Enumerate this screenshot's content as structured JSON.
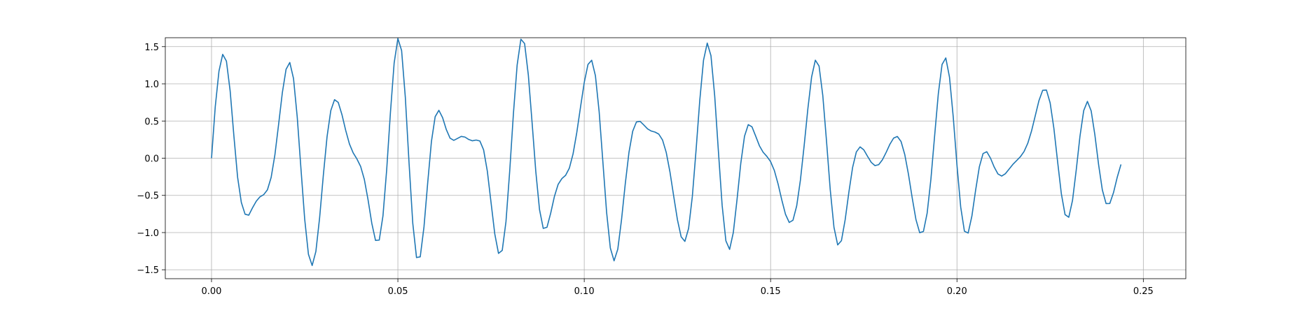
{
  "chart_data": {
    "type": "line",
    "title": "",
    "xlabel": "",
    "ylabel": "",
    "xlim": [
      -0.0124,
      0.2614
    ],
    "ylim": [
      -1.62,
      1.62
    ],
    "grid": true,
    "xticks": [
      0.0,
      0.05,
      0.1,
      0.15,
      0.2,
      0.25
    ],
    "xtick_labels": [
      "0.00",
      "0.05",
      "0.10",
      "0.15",
      "0.20",
      "0.25"
    ],
    "yticks": [
      -1.5,
      -1.0,
      -0.5,
      0.0,
      0.5,
      1.0,
      1.5
    ],
    "ytick_labels": [
      "−1.5",
      "−1.0",
      "−0.5",
      "0.0",
      "0.5",
      "1.0",
      "1.5"
    ],
    "series": [
      {
        "color": "#1f77b4",
        "x_start": 0.0,
        "x_step": 0.001,
        "y": [
          0.0,
          0.691,
          1.171,
          1.396,
          1.305,
          0.904,
          0.301,
          -0.257,
          -0.595,
          -0.753,
          -0.766,
          -0.667,
          -0.579,
          -0.519,
          -0.49,
          -0.425,
          -0.258,
          0.043,
          0.455,
          0.88,
          1.195,
          1.287,
          1.071,
          0.551,
          -0.144,
          -0.82,
          -1.291,
          -1.443,
          -1.254,
          -0.802,
          -0.23,
          0.29,
          0.64,
          0.787,
          0.75,
          0.585,
          0.374,
          0.192,
          0.072,
          -0.009,
          -0.11,
          -0.285,
          -0.56,
          -0.875,
          -1.105,
          -1.101,
          -0.775,
          -0.153,
          0.612,
          1.28,
          1.609,
          1.447,
          0.816,
          -0.067,
          -0.877,
          -1.336,
          -1.326,
          -0.925,
          -0.331,
          0.224,
          0.558,
          0.644,
          0.545,
          0.384,
          0.269,
          0.24,
          0.266,
          0.293,
          0.284,
          0.252,
          0.234,
          0.244,
          0.231,
          0.112,
          -0.175,
          -0.598,
          -1.019,
          -1.28,
          -1.24,
          -0.853,
          -0.175,
          0.6,
          1.254,
          1.6,
          1.541,
          1.119,
          0.483,
          -0.178,
          -0.691,
          -0.944,
          -0.929,
          -0.739,
          -0.514,
          -0.351,
          -0.274,
          -0.23,
          -0.134,
          0.058,
          0.345,
          0.687,
          1.018,
          1.26,
          1.317,
          1.109,
          0.625,
          -0.05,
          -0.727,
          -1.208,
          -1.38,
          -1.223,
          -0.828,
          -0.348,
          0.078,
          0.362,
          0.487,
          0.495,
          0.446,
          0.394,
          0.365,
          0.351,
          0.324,
          0.245,
          0.077,
          -0.186,
          -0.511,
          -0.827,
          -1.057,
          -1.119,
          -0.944,
          -0.515,
          0.108,
          0.78,
          1.317,
          1.548,
          1.378,
          0.839,
          0.089,
          -0.636,
          -1.111,
          -1.226,
          -0.998,
          -0.553,
          -0.069,
          0.296,
          0.451,
          0.422,
          0.296,
          0.167,
          0.08,
          0.024,
          -0.046,
          -0.165,
          -0.346,
          -0.561,
          -0.755,
          -0.864,
          -0.834,
          -0.641,
          -0.293,
          0.169,
          0.666,
          1.092,
          1.318,
          1.239,
          0.843,
          0.229,
          -0.424,
          -0.929,
          -1.166,
          -1.109,
          -0.829,
          -0.457,
          -0.124,
          0.084,
          0.152,
          0.113,
          0.026,
          -0.056,
          -0.1,
          -0.087,
          -0.021,
          0.078,
          0.187,
          0.27,
          0.292,
          0.224,
          0.048,
          -0.221,
          -0.536,
          -0.826,
          -1.002,
          -0.985,
          -0.739,
          -0.286,
          0.298,
          0.868,
          1.26,
          1.348,
          1.088,
          0.555,
          -0.093,
          -0.656,
          -0.982,
          -1.006,
          -0.779,
          -0.432,
          -0.117,
          0.063,
          0.087,
          0.0,
          -0.12,
          -0.212,
          -0.24,
          -0.208,
          -0.145,
          -0.083,
          -0.032,
          0.019,
          0.09,
          0.201,
          0.365,
          0.57,
          0.775,
          0.913,
          0.916,
          0.743,
          0.402,
          -0.046,
          -0.477,
          -0.759,
          -0.794,
          -0.568,
          -0.158,
          0.294,
          0.639,
          0.764,
          0.637,
          0.313,
          -0.087,
          -0.426,
          -0.61,
          -0.609,
          -0.463,
          -0.256,
          -0.084
        ]
      }
    ]
  }
}
